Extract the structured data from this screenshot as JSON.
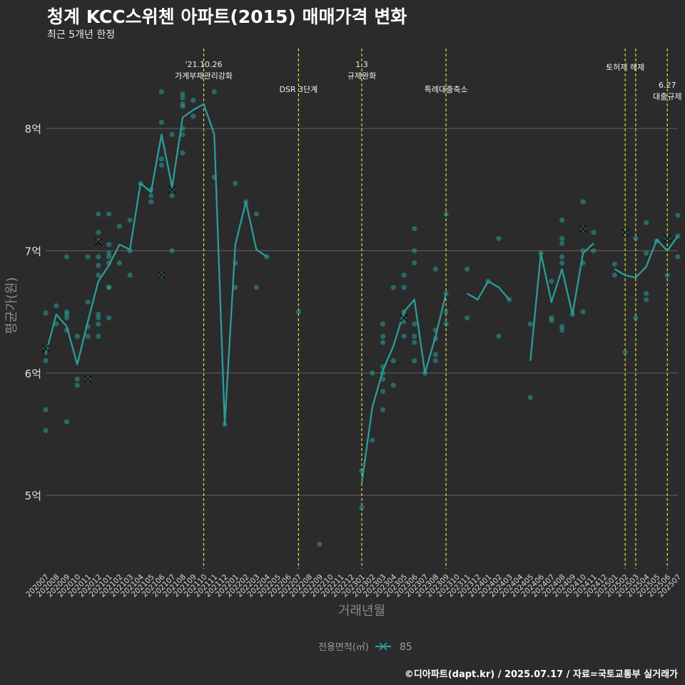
{
  "title": "청계 KCC스위첸 아파트(2015) 매매가격 변화",
  "subtitle": "최근 5개년 한정",
  "caption": "©디아파트(dapt.kr) / 2025.07.17 / 자료=국토교통부 실거래가",
  "chart_data": {
    "type": "line",
    "xlabel": "거래년월",
    "ylabel": "평균가(원)",
    "ylim": [
      4.4,
      8.7
    ],
    "y_ticks": [
      {
        "value": 5,
        "label": "5억"
      },
      {
        "value": 6,
        "label": "6억"
      },
      {
        "value": 7,
        "label": "7억"
      },
      {
        "value": 8,
        "label": "8억"
      }
    ],
    "categories": [
      "202007",
      "202008",
      "202009",
      "202010",
      "202011",
      "202012",
      "202101",
      "202102",
      "202103",
      "202104",
      "202105",
      "202106",
      "202107",
      "202108",
      "202109",
      "202110",
      "202111",
      "202112",
      "202201",
      "202202",
      "202203",
      "202204",
      "202205",
      "202206",
      "202207",
      "202208",
      "202209",
      "202210",
      "202211",
      "202212",
      "202301",
      "202302",
      "202303",
      "202304",
      "202305",
      "202306",
      "202307",
      "202308",
      "202309",
      "202310",
      "202311",
      "202312",
      "202401",
      "202402",
      "202403",
      "202404",
      "202405",
      "202406",
      "202407",
      "202408",
      "202409",
      "202410",
      "202411",
      "202412",
      "202501",
      "202502",
      "202503",
      "202504",
      "202505",
      "202506",
      "202507"
    ],
    "grid": true,
    "legend": {
      "title": "전용면적(㎡)",
      "position": "bottom",
      "entries": [
        "85"
      ]
    },
    "series": [
      {
        "name": "85",
        "color": "#2a9d99",
        "segments": [
          [
            [
              "202007",
              6.15
            ],
            [
              "202008",
              6.48
            ],
            [
              "202009",
              6.38
            ],
            [
              "202010",
              6.07
            ],
            [
              "202011",
              6.42
            ],
            [
              "202012",
              6.75
            ],
            [
              "202101",
              6.88
            ],
            [
              "202102",
              7.05
            ],
            [
              "202103",
              7.01
            ],
            [
              "202104",
              7.55
            ],
            [
              "202105",
              7.48
            ],
            [
              "202106",
              7.95
            ],
            [
              "202107",
              7.52
            ],
            [
              "202108",
              8.09
            ],
            [
              "202109",
              8.15
            ],
            [
              "202110",
              8.2
            ],
            [
              "202111",
              7.95
            ],
            [
              "202112",
              5.58
            ],
            [
              "202201",
              7.05
            ],
            [
              "202202",
              7.4
            ],
            [
              "202203",
              7.01
            ],
            [
              "202204",
              6.95
            ]
          ],
          [
            [
              "202301",
              5.1
            ],
            [
              "202302",
              5.72
            ],
            [
              "202303",
              6.02
            ],
            [
              "202304",
              6.22
            ],
            [
              "202305",
              6.5
            ],
            [
              "202306",
              6.6
            ],
            [
              "202307",
              6.0
            ],
            [
              "202308",
              6.3
            ],
            [
              "202309",
              6.65
            ]
          ],
          [
            [
              "202311",
              6.65
            ],
            [
              "202312",
              6.6
            ],
            [
              "202401",
              6.75
            ],
            [
              "202402",
              6.7
            ],
            [
              "202403",
              6.6
            ]
          ],
          [
            [
              "202405",
              6.1
            ],
            [
              "202406",
              6.98
            ],
            [
              "202407",
              6.58
            ],
            [
              "202408",
              6.85
            ],
            [
              "202409",
              6.48
            ],
            [
              "202410",
              6.98
            ],
            [
              "202411",
              7.06
            ]
          ],
          [
            [
              "202501",
              6.85
            ],
            [
              "202502",
              6.8
            ],
            [
              "202503",
              6.78
            ],
            [
              "202504",
              6.87
            ],
            [
              "202505",
              7.09
            ],
            [
              "202506",
              7.0
            ],
            [
              "202507",
              7.12
            ]
          ]
        ]
      }
    ],
    "points": [
      [
        "202007",
        6.49
      ],
      [
        "202007",
        6.2
      ],
      [
        "202007",
        6.1
      ],
      [
        "202007",
        5.7
      ],
      [
        "202007",
        5.53
      ],
      [
        "202008",
        6.55
      ],
      [
        "202008",
        6.4
      ],
      [
        "202009",
        6.95
      ],
      [
        "202009",
        6.5
      ],
      [
        "202009",
        6.48
      ],
      [
        "202009",
        6.45
      ],
      [
        "202009",
        6.35
      ],
      [
        "202009",
        5.6
      ],
      [
        "202010",
        6.3
      ],
      [
        "202010",
        5.95
      ],
      [
        "202010",
        5.9
      ],
      [
        "202011",
        6.95
      ],
      [
        "202011",
        6.58
      ],
      [
        "202011",
        6.38
      ],
      [
        "202011",
        6.3
      ],
      [
        "202011",
        5.95
      ],
      [
        "202012",
        7.3
      ],
      [
        "202012",
        7.15
      ],
      [
        "202012",
        7.08
      ],
      [
        "202012",
        6.95
      ],
      [
        "202012",
        6.88
      ],
      [
        "202012",
        6.8
      ],
      [
        "202012",
        6.48
      ],
      [
        "202012",
        6.45
      ],
      [
        "202012",
        6.4
      ],
      [
        "202012",
        6.3
      ],
      [
        "202101",
        7.3
      ],
      [
        "202101",
        7.05
      ],
      [
        "202101",
        6.98
      ],
      [
        "202101",
        6.95
      ],
      [
        "202101",
        6.9
      ],
      [
        "202101",
        6.7
      ],
      [
        "202101",
        6.7
      ],
      [
        "202101",
        6.45
      ],
      [
        "202102",
        7.2
      ],
      [
        "202102",
        6.9
      ],
      [
        "202103",
        7.25
      ],
      [
        "202103",
        7.0
      ],
      [
        "202103",
        6.8
      ],
      [
        "202104",
        7.55
      ],
      [
        "202105",
        7.5
      ],
      [
        "202105",
        7.45
      ],
      [
        "202105",
        7.4
      ],
      [
        "202106",
        8.3
      ],
      [
        "202106",
        8.05
      ],
      [
        "202106",
        7.75
      ],
      [
        "202106",
        7.7
      ],
      [
        "202106",
        6.8
      ],
      [
        "202107",
        7.95
      ],
      [
        "202107",
        7.5
      ],
      [
        "202107",
        7.45
      ],
      [
        "202107",
        7.0
      ],
      [
        "202108",
        8.28
      ],
      [
        "202108",
        8.25
      ],
      [
        "202108",
        8.2
      ],
      [
        "202108",
        8.18
      ],
      [
        "202108",
        8.0
      ],
      [
        "202108",
        7.95
      ],
      [
        "202108",
        7.8
      ],
      [
        "202109",
        8.23
      ],
      [
        "202109",
        8.1
      ],
      [
        "202111",
        8.3
      ],
      [
        "202111",
        7.6
      ],
      [
        "202112",
        5.58
      ],
      [
        "202201",
        7.55
      ],
      [
        "202201",
        6.9
      ],
      [
        "202201",
        6.7
      ],
      [
        "202202",
        7.4
      ],
      [
        "202203",
        7.3
      ],
      [
        "202203",
        6.7
      ],
      [
        "202204",
        6.95
      ],
      [
        "202207",
        6.5
      ],
      [
        "202209",
        4.6
      ],
      [
        "202301",
        5.2
      ],
      [
        "202301",
        4.9
      ],
      [
        "202302",
        6.0
      ],
      [
        "202302",
        5.45
      ],
      [
        "202303",
        6.4
      ],
      [
        "202303",
        6.3
      ],
      [
        "202303",
        6.25
      ],
      [
        "202303",
        6.05
      ],
      [
        "202303",
        6.0
      ],
      [
        "202303",
        5.95
      ],
      [
        "202303",
        5.85
      ],
      [
        "202303",
        5.7
      ],
      [
        "202304",
        6.7
      ],
      [
        "202304",
        6.1
      ],
      [
        "202304",
        5.9
      ],
      [
        "202305",
        6.8
      ],
      [
        "202305",
        6.7
      ],
      [
        "202305",
        6.5
      ],
      [
        "202305",
        6.45
      ],
      [
        "202305",
        6.42
      ],
      [
        "202305",
        6.3
      ],
      [
        "202306",
        7.18
      ],
      [
        "202306",
        7.0
      ],
      [
        "202306",
        6.9
      ],
      [
        "202306",
        6.4
      ],
      [
        "202306",
        6.3
      ],
      [
        "202306",
        6.25
      ],
      [
        "202306",
        6.1
      ],
      [
        "202307",
        6.0
      ],
      [
        "202308",
        6.85
      ],
      [
        "202308",
        6.35
      ],
      [
        "202308",
        6.28
      ],
      [
        "202308",
        6.15
      ],
      [
        "202308",
        6.1
      ],
      [
        "202309",
        7.3
      ],
      [
        "202309",
        6.65
      ],
      [
        "202309",
        6.5
      ],
      [
        "202309",
        6.4
      ],
      [
        "202311",
        6.85
      ],
      [
        "202311",
        6.45
      ],
      [
        "202401",
        6.75
      ],
      [
        "202402",
        7.1
      ],
      [
        "202402",
        6.3
      ],
      [
        "202403",
        6.6
      ],
      [
        "202405",
        6.4
      ],
      [
        "202405",
        5.8
      ],
      [
        "202406",
        6.98
      ],
      [
        "202407",
        6.75
      ],
      [
        "202407",
        6.45
      ],
      [
        "202407",
        6.43
      ],
      [
        "202408",
        7.25
      ],
      [
        "202408",
        7.1
      ],
      [
        "202408",
        7.06
      ],
      [
        "202408",
        6.95
      ],
      [
        "202408",
        6.9
      ],
      [
        "202408",
        6.38
      ],
      [
        "202408",
        6.35
      ],
      [
        "202409",
        6.48
      ],
      [
        "202410",
        7.4
      ],
      [
        "202410",
        7.18
      ],
      [
        "202410",
        7.0
      ],
      [
        "202410",
        6.9
      ],
      [
        "202410",
        6.5
      ],
      [
        "202411",
        7.15
      ],
      [
        "202411",
        7.0
      ],
      [
        "202501",
        6.89
      ],
      [
        "202501",
        6.8
      ],
      [
        "202502",
        7.15
      ],
      [
        "202502",
        6.17
      ],
      [
        "202503",
        7.1
      ],
      [
        "202503",
        6.45
      ],
      [
        "202504",
        7.23
      ],
      [
        "202504",
        6.98
      ],
      [
        "202504",
        6.65
      ],
      [
        "202504",
        6.6
      ],
      [
        "202505",
        7.08
      ],
      [
        "202506",
        7.1
      ],
      [
        "202506",
        6.8
      ],
      [
        "202507",
        7.29
      ],
      [
        "202507",
        7.12
      ],
      [
        "202507",
        6.95
      ]
    ],
    "highlight_points": [
      [
        "202007",
        6.2
      ],
      [
        "202011",
        5.95
      ],
      [
        "202012",
        7.07
      ],
      [
        "202106",
        6.8
      ],
      [
        "202107",
        7.5
      ],
      [
        "202305",
        6.45
      ],
      [
        "202410",
        7.18
      ],
      [
        "202502",
        7.15
      ],
      [
        "202506",
        7.1
      ]
    ],
    "annotations": [
      {
        "x": "202110",
        "lines": [
          "'21.10.26",
          "가계부채관리강화"
        ],
        "level": 0
      },
      {
        "x": "202207",
        "lines": [
          "DSR 3단계"
        ],
        "level": 2
      },
      {
        "x": "202301",
        "lines": [
          "1.3",
          "규제완화"
        ],
        "level": 0
      },
      {
        "x": "202309",
        "lines": [
          "특례대출축소"
        ],
        "level": 2
      },
      {
        "x": "202502",
        "lines": [
          "토허제 해제"
        ],
        "level": 1
      },
      {
        "x": "202503",
        "lines": [],
        "level": 1
      },
      {
        "x": "202506",
        "lines": [
          "6.27",
          "대출규제"
        ],
        "level": 3
      }
    ]
  }
}
